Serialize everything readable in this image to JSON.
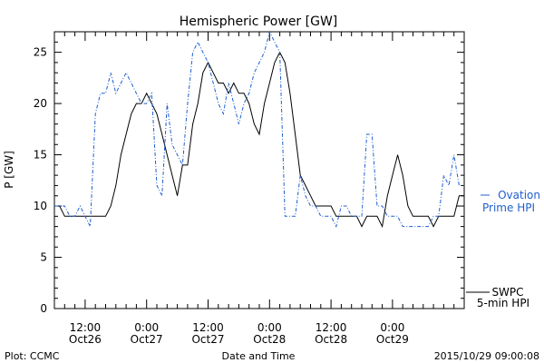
{
  "chart_data": {
    "type": "line",
    "title": "Hemispheric Power [GW]",
    "ylabel": "P [GW]",
    "xlabel": "Date and Time",
    "ylim": [
      0,
      27
    ],
    "yticks": [
      0,
      5,
      10,
      15,
      20,
      25
    ],
    "xlim_hours": [
      0,
      80
    ],
    "xticks": [
      {
        "hour": 6,
        "time": "12:00",
        "date": "Oct26"
      },
      {
        "hour": 18,
        "time": "0:00",
        "date": "Oct27"
      },
      {
        "hour": 30,
        "time": "12:00",
        "date": "Oct27"
      },
      {
        "hour": 42,
        "time": "0:00",
        "date": "Oct28"
      },
      {
        "hour": 54,
        "time": "12:00",
        "date": "Oct28"
      },
      {
        "hour": 66,
        "time": "0:00",
        "date": "Oct29"
      }
    ],
    "series": [
      {
        "name": "SWPC 5-min HPI",
        "color": "#000000",
        "style": "solid",
        "x": [
          0,
          1,
          2,
          3,
          4,
          5,
          6,
          7,
          8,
          9,
          10,
          11,
          12,
          13,
          14,
          15,
          16,
          17,
          18,
          19,
          20,
          21,
          22,
          23,
          24,
          25,
          26,
          27,
          28,
          29,
          30,
          31,
          32,
          33,
          34,
          35,
          36,
          37,
          38,
          39,
          40,
          41,
          42,
          43,
          44,
          45,
          46,
          47,
          48,
          49,
          50,
          51,
          52,
          53,
          54,
          55,
          56,
          57,
          58,
          59,
          60,
          61,
          62,
          63,
          64,
          65,
          66,
          67,
          68,
          69,
          70,
          71,
          72,
          73,
          74,
          75,
          76,
          77,
          78,
          79,
          80
        ],
        "y": [
          10,
          10,
          9,
          9,
          9,
          9,
          9,
          9,
          9,
          9,
          9,
          10,
          12,
          15,
          17,
          19,
          20,
          20,
          21,
          20,
          19,
          17,
          15,
          13,
          11,
          14,
          14,
          18,
          20,
          23,
          24,
          23,
          22,
          22,
          21,
          22,
          21,
          21,
          20,
          18,
          17,
          20,
          22,
          24,
          25,
          24,
          21,
          17,
          13,
          12,
          11,
          10,
          10,
          10,
          10,
          9,
          9,
          9,
          9,
          9,
          8,
          9,
          9,
          9,
          8,
          11,
          13,
          15,
          13,
          10,
          9,
          9,
          9,
          9,
          8,
          9,
          9,
          9,
          9,
          11,
          11
        ]
      },
      {
        "name": "Ovation Prime HPI",
        "color": "#1f5fd0",
        "style": "dash-dot",
        "x": [
          0,
          1,
          2,
          3,
          4,
          5,
          6,
          7,
          8,
          9,
          10,
          11,
          12,
          13,
          14,
          15,
          16,
          17,
          18,
          19,
          20,
          21,
          22,
          23,
          24,
          25,
          26,
          27,
          28,
          29,
          30,
          31,
          32,
          33,
          34,
          35,
          36,
          37,
          38,
          39,
          40,
          41,
          42,
          43,
          44,
          45,
          46,
          47,
          48,
          49,
          50,
          51,
          52,
          53,
          54,
          55,
          56,
          57,
          58,
          59,
          60,
          61,
          62,
          63,
          64,
          65,
          66,
          67,
          68,
          69,
          70,
          71,
          72,
          73,
          74,
          75,
          76,
          77,
          78,
          79,
          80
        ],
        "y": [
          10,
          10,
          10,
          9,
          9,
          10,
          9,
          8,
          19,
          21,
          21,
          23,
          21,
          22,
          23,
          22,
          21,
          20,
          20,
          21,
          12,
          11,
          20,
          16,
          15,
          14,
          20,
          25,
          26,
          25,
          24,
          22,
          20,
          19,
          22,
          20,
          18,
          20,
          21,
          23,
          24,
          25,
          27,
          26,
          25,
          9,
          9,
          9,
          13,
          11,
          10,
          10,
          9,
          9,
          9,
          8,
          10,
          10,
          9,
          9,
          9,
          17,
          17,
          10,
          10,
          9,
          9,
          9,
          8,
          8,
          8,
          8,
          8,
          8,
          9,
          9,
          13,
          12,
          15,
          12,
          12
        ]
      }
    ],
    "legend": {
      "placement": "right",
      "ovation_line1": "Ovation",
      "ovation_line2": "Prime HPI",
      "swpc_line1": "SWPC",
      "swpc_line2": "5-min HPI"
    },
    "footer": {
      "left": "Plot: CCMC",
      "right": "2015/10/29 09:00:08"
    }
  }
}
